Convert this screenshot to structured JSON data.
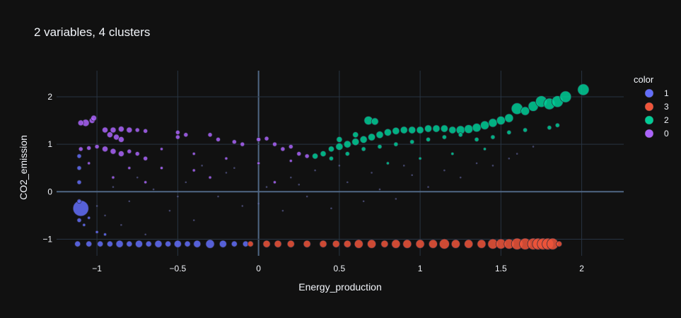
{
  "chart_data": {
    "type": "scatter",
    "title": "2 variables, 4 clusters",
    "xlabel": "Energy_production",
    "ylabel": "CO2_emission",
    "xlim": [
      -1.25,
      2.26
    ],
    "ylim": [
      -1.35,
      2.55
    ],
    "x_ticks": [
      -1,
      -0.5,
      0,
      0.5,
      1,
      1.5,
      2
    ],
    "x_tick_labels": [
      "−1",
      "−0.5",
      "0",
      "0.5",
      "1",
      "1.5",
      "2"
    ],
    "y_ticks": [
      -1,
      0,
      1,
      2
    ],
    "y_tick_labels": [
      "−1",
      "0",
      "1",
      "2"
    ],
    "grid": true,
    "legend": {
      "title": "color",
      "position": "right"
    },
    "series": [
      {
        "name": "1",
        "color": "#636efa",
        "points": [
          [
            -1.12,
            -1.1,
            4
          ],
          [
            -1.05,
            -1.1,
            4
          ],
          [
            -0.98,
            -1.1,
            4
          ],
          [
            -0.92,
            -1.1,
            4
          ],
          [
            -0.86,
            -1.1,
            5
          ],
          [
            -0.8,
            -1.1,
            4
          ],
          [
            -0.74,
            -1.1,
            5
          ],
          [
            -0.68,
            -1.1,
            4
          ],
          [
            -0.62,
            -1.1,
            5
          ],
          [
            -0.56,
            -1.1,
            4
          ],
          [
            -0.5,
            -1.1,
            5
          ],
          [
            -0.44,
            -1.1,
            4
          ],
          [
            -0.38,
            -1.1,
            5
          ],
          [
            -0.3,
            -1.1,
            6
          ],
          [
            -0.22,
            -1.1,
            5
          ],
          [
            -0.15,
            -1.1,
            4
          ],
          [
            -0.08,
            -1.1,
            4
          ],
          [
            -1.1,
            -0.35,
            11
          ],
          [
            -1.11,
            -0.6,
            3
          ],
          [
            -1.11,
            -0.2,
            3
          ],
          [
            -1.11,
            0.2,
            3
          ],
          [
            -1.11,
            0.5,
            3
          ],
          [
            -1.11,
            0.75,
            3
          ],
          [
            -1.08,
            -0.7,
            2
          ],
          [
            -1.05,
            -0.55,
            2
          ],
          [
            -1.0,
            -0.85,
            2
          ],
          [
            -0.95,
            -0.9,
            2
          ]
        ]
      },
      {
        "name": "3",
        "color": "#ef553b",
        "points": [
          [
            -0.05,
            -1.1,
            4
          ],
          [
            0.05,
            -1.1,
            5
          ],
          [
            0.12,
            -1.1,
            5
          ],
          [
            0.2,
            -1.1,
            5
          ],
          [
            0.3,
            -1.1,
            5
          ],
          [
            0.4,
            -1.1,
            5
          ],
          [
            0.48,
            -1.1,
            5
          ],
          [
            0.55,
            -1.1,
            5
          ],
          [
            0.62,
            -1.1,
            6
          ],
          [
            0.7,
            -1.1,
            6
          ],
          [
            0.78,
            -1.1,
            5
          ],
          [
            0.85,
            -1.1,
            6
          ],
          [
            0.92,
            -1.1,
            6
          ],
          [
            1.0,
            -1.1,
            6
          ],
          [
            1.08,
            -1.1,
            6
          ],
          [
            1.15,
            -1.1,
            7
          ],
          [
            1.22,
            -1.1,
            6
          ],
          [
            1.3,
            -1.1,
            6
          ],
          [
            1.38,
            -1.1,
            6
          ],
          [
            1.45,
            -1.1,
            7
          ],
          [
            1.5,
            -1.1,
            7
          ],
          [
            1.55,
            -1.1,
            7
          ],
          [
            1.6,
            -1.1,
            8
          ],
          [
            1.65,
            -1.1,
            8
          ],
          [
            1.7,
            -1.1,
            8
          ],
          [
            1.73,
            -1.1,
            8
          ],
          [
            1.76,
            -1.1,
            8
          ],
          [
            1.79,
            -1.1,
            8
          ],
          [
            1.82,
            -1.1,
            8
          ],
          [
            1.86,
            -1.1,
            4
          ]
        ]
      },
      {
        "name": "2",
        "color": "#00cc96",
        "points": [
          [
            0.35,
            0.75,
            4
          ],
          [
            0.4,
            0.8,
            4
          ],
          [
            0.45,
            0.9,
            4
          ],
          [
            0.5,
            0.95,
            5
          ],
          [
            0.55,
            1.0,
            5
          ],
          [
            0.6,
            1.05,
            5
          ],
          [
            0.65,
            1.1,
            5
          ],
          [
            0.7,
            1.15,
            5
          ],
          [
            0.75,
            1.2,
            5
          ],
          [
            0.8,
            1.25,
            5
          ],
          [
            0.85,
            1.28,
            5
          ],
          [
            0.9,
            1.3,
            5
          ],
          [
            0.95,
            1.3,
            5
          ],
          [
            1.0,
            1.3,
            5
          ],
          [
            1.05,
            1.33,
            5
          ],
          [
            1.1,
            1.33,
            5
          ],
          [
            1.15,
            1.33,
            5
          ],
          [
            1.2,
            1.3,
            5
          ],
          [
            1.25,
            1.3,
            6
          ],
          [
            1.3,
            1.32,
            6
          ],
          [
            1.35,
            1.35,
            6
          ],
          [
            1.4,
            1.4,
            6
          ],
          [
            1.45,
            1.45,
            6
          ],
          [
            1.5,
            1.5,
            6
          ],
          [
            1.55,
            1.55,
            6
          ],
          [
            1.6,
            1.75,
            8
          ],
          [
            1.65,
            1.7,
            6
          ],
          [
            1.7,
            1.8,
            7
          ],
          [
            1.75,
            1.9,
            8
          ],
          [
            1.8,
            1.85,
            8
          ],
          [
            1.85,
            1.9,
            8
          ],
          [
            1.9,
            2.0,
            8
          ],
          [
            2.01,
            2.15,
            8
          ],
          [
            0.68,
            1.5,
            6
          ],
          [
            0.72,
            1.48,
            5
          ],
          [
            0.5,
            1.1,
            4
          ],
          [
            0.6,
            1.2,
            4
          ],
          [
            0.45,
            0.7,
            3
          ],
          [
            0.55,
            0.8,
            3
          ],
          [
            0.65,
            0.9,
            3
          ],
          [
            0.75,
            0.95,
            3
          ],
          [
            0.85,
            1.0,
            3
          ],
          [
            0.95,
            1.05,
            3
          ],
          [
            1.05,
            1.1,
            3
          ],
          [
            1.15,
            1.15,
            3
          ],
          [
            1.25,
            1.2,
            3
          ],
          [
            1.35,
            1.1,
            3
          ],
          [
            1.45,
            1.15,
            3
          ],
          [
            1.55,
            1.25,
            3
          ],
          [
            1.65,
            1.3,
            3
          ],
          [
            0.8,
            0.6,
            2
          ],
          [
            1.0,
            0.7,
            2
          ],
          [
            1.2,
            0.8,
            2
          ],
          [
            1.4,
            0.9,
            2
          ],
          [
            1.85,
            1.4,
            3
          ],
          [
            1.8,
            1.35,
            3
          ]
        ]
      },
      {
        "name": "0",
        "color": "#ab63fa",
        "points": [
          [
            -1.07,
            1.45,
            5
          ],
          [
            -1.03,
            1.5,
            4
          ],
          [
            -1.02,
            1.55,
            4
          ],
          [
            -1.1,
            1.45,
            4
          ],
          [
            -1.1,
            0.9,
            3
          ],
          [
            -1.05,
            0.92,
            3
          ],
          [
            -1.0,
            0.95,
            3
          ],
          [
            -0.95,
            0.9,
            4
          ],
          [
            -0.9,
            0.85,
            4
          ],
          [
            -0.85,
            0.8,
            4
          ],
          [
            -0.8,
            0.85,
            3
          ],
          [
            -0.75,
            0.8,
            3
          ],
          [
            -0.7,
            0.7,
            3
          ],
          [
            -0.95,
            1.3,
            4
          ],
          [
            -0.9,
            1.3,
            4
          ],
          [
            -0.85,
            1.32,
            4
          ],
          [
            -0.8,
            1.3,
            4
          ],
          [
            -0.75,
            1.3,
            3
          ],
          [
            -0.7,
            1.28,
            3
          ],
          [
            -0.92,
            1.2,
            4
          ],
          [
            -0.88,
            1.15,
            4
          ],
          [
            -0.85,
            1.1,
            4
          ],
          [
            -0.5,
            1.25,
            3
          ],
          [
            -0.5,
            1.15,
            3
          ],
          [
            -0.45,
            1.2,
            3
          ],
          [
            -0.3,
            1.2,
            3
          ],
          [
            -0.25,
            1.1,
            3
          ],
          [
            -0.15,
            1.05,
            3
          ],
          [
            -0.1,
            1.0,
            3
          ],
          [
            0.0,
            1.1,
            3
          ],
          [
            0.05,
            1.12,
            3
          ],
          [
            0.1,
            1.0,
            3
          ],
          [
            0.15,
            0.9,
            3
          ],
          [
            0.2,
            0.95,
            3
          ],
          [
            0.25,
            0.8,
            3
          ],
          [
            0.3,
            0.75,
            3
          ],
          [
            -0.6,
            0.9,
            2
          ],
          [
            -0.4,
            0.8,
            2
          ],
          [
            -0.2,
            0.7,
            2
          ],
          [
            0.0,
            0.6,
            2
          ],
          [
            0.2,
            0.65,
            2
          ],
          [
            -0.8,
            0.5,
            2
          ],
          [
            -0.6,
            0.5,
            2
          ],
          [
            -0.4,
            0.45,
            2
          ],
          [
            -0.7,
            0.2,
            2
          ],
          [
            -0.9,
            0.3,
            2
          ],
          [
            -1.05,
            0.6,
            2
          ],
          [
            -0.3,
            0.3,
            2
          ],
          [
            0.1,
            0.2,
            2
          ]
        ]
      }
    ],
    "background_points": [
      [
        -1.0,
        -0.3
      ],
      [
        -0.95,
        -0.5
      ],
      [
        -0.9,
        0.1
      ],
      [
        -0.8,
        -0.2
      ],
      [
        -0.75,
        0.3
      ],
      [
        -0.65,
        0.05
      ],
      [
        -0.6,
        0.5
      ],
      [
        -0.55,
        -0.4
      ],
      [
        -0.45,
        0.2
      ],
      [
        -0.4,
        -0.6
      ],
      [
        -0.35,
        0.55
      ],
      [
        -0.25,
        -0.1
      ],
      [
        -0.2,
        0.4
      ],
      [
        -0.1,
        -0.3
      ],
      [
        0.0,
        -0.25
      ],
      [
        0.05,
        0.1
      ],
      [
        0.15,
        -0.4
      ],
      [
        0.2,
        0.3
      ],
      [
        0.3,
        -0.1
      ],
      [
        0.35,
        0.45
      ],
      [
        0.45,
        -0.35
      ],
      [
        0.55,
        0.2
      ],
      [
        0.65,
        -0.2
      ],
      [
        0.75,
        0.05
      ],
      [
        0.85,
        -0.15
      ],
      [
        0.95,
        0.35
      ],
      [
        1.05,
        0.1
      ],
      [
        1.15,
        0.45
      ],
      [
        1.25,
        0.3
      ],
      [
        1.35,
        0.6
      ],
      [
        1.45,
        0.55
      ],
      [
        1.55,
        0.7
      ],
      [
        1.6,
        0.8
      ],
      [
        1.7,
        0.95
      ],
      [
        0.9,
        0.55
      ],
      [
        0.7,
        0.4
      ],
      [
        0.5,
        0.55
      ],
      [
        0.25,
        0.15
      ],
      [
        -0.15,
        0.5
      ],
      [
        -0.5,
        -0.1
      ],
      [
        -0.85,
        -0.7
      ],
      [
        -0.7,
        -0.9
      ]
    ]
  }
}
